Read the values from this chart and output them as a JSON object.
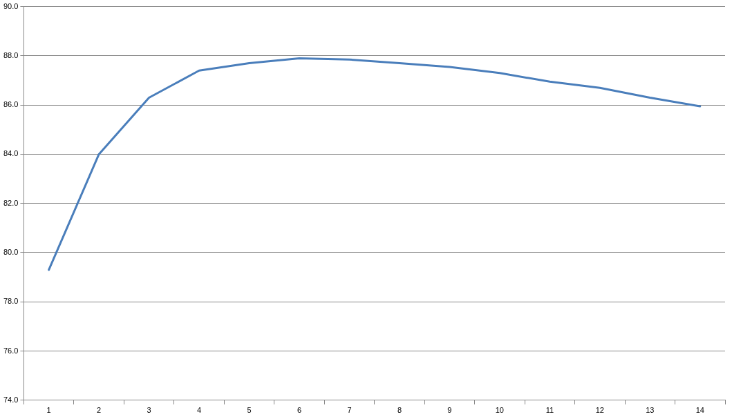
{
  "chart_data": {
    "type": "line",
    "categories": [
      "1",
      "2",
      "3",
      "4",
      "5",
      "6",
      "7",
      "8",
      "9",
      "10",
      "11",
      "12",
      "13",
      "14"
    ],
    "series": [
      {
        "color": "#4a7ebb",
        "values": [
          79.3,
          84.0,
          86.3,
          87.4,
          87.7,
          87.9,
          87.85,
          87.7,
          87.55,
          87.3,
          86.95,
          86.7,
          86.3,
          85.95
        ]
      }
    ],
    "ylim": [
      74,
      90
    ],
    "yticks": [
      {
        "value": 74,
        "label": "74.0"
      },
      {
        "value": 76,
        "label": "76.0"
      },
      {
        "value": 78,
        "label": "78.0"
      },
      {
        "value": 80,
        "label": "80.0"
      },
      {
        "value": 82,
        "label": "82.0"
      },
      {
        "value": 84,
        "label": "84.0"
      },
      {
        "value": 86,
        "label": "86.0"
      },
      {
        "value": 88,
        "label": "88.0"
      },
      {
        "value": 90,
        "label": "90.0"
      }
    ],
    "grid": "y",
    "legend": false,
    "marker": "none",
    "line_style": "solid"
  }
}
